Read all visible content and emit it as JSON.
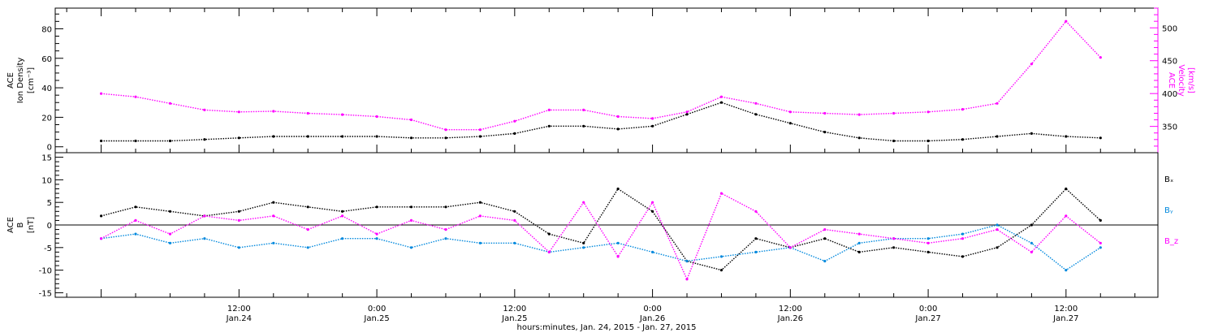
{
  "chart_data": [
    {
      "type": "scatter",
      "panel": "top",
      "ylabel_left": [
        "ACE",
        "Ion Density",
        "[cm⁻³]"
      ],
      "ylabel_right": [
        "ACE",
        "Velocity",
        "[km/s]"
      ],
      "ylim_left": [
        -4,
        94
      ],
      "ylim_right": [
        310,
        530
      ],
      "left_ticks": [
        0,
        20,
        40,
        60,
        80
      ],
      "right_ticks": [
        350,
        400,
        450,
        500
      ],
      "series": [
        {
          "axis": "left",
          "color": "#000000",
          "x": [
            0,
            3,
            6,
            9,
            12,
            15,
            18,
            21,
            24,
            27,
            30,
            33,
            36,
            39,
            42,
            45,
            48,
            51,
            54,
            57,
            60,
            63,
            66,
            69,
            72,
            75,
            78,
            81,
            84,
            87
          ],
          "values": [
            4,
            4,
            4,
            5,
            6,
            7,
            7,
            7,
            7,
            6,
            6,
            7,
            9,
            14,
            14,
            12,
            14,
            22,
            30,
            22,
            16,
            10,
            6,
            4,
            4,
            5,
            7,
            9,
            7,
            6
          ]
        },
        {
          "axis": "right",
          "color": "#ff00ff",
          "x": [
            0,
            3,
            6,
            9,
            12,
            15,
            18,
            21,
            24,
            27,
            30,
            33,
            36,
            39,
            42,
            45,
            48,
            51,
            54,
            57,
            60,
            63,
            66,
            69,
            72,
            75,
            78,
            81,
            84,
            87
          ],
          "values": [
            400,
            395,
            385,
            375,
            372,
            373,
            370,
            368,
            365,
            360,
            345,
            345,
            358,
            375,
            375,
            365,
            362,
            372,
            395,
            385,
            372,
            370,
            368,
            370,
            372,
            376,
            385,
            445,
            510,
            455
          ]
        }
      ]
    },
    {
      "type": "scatter",
      "panel": "bottom",
      "ylabel_left": [
        "ACE",
        "B",
        "[nT]"
      ],
      "ylim": [
        -16,
        16
      ],
      "left_ticks": [
        -15,
        -10,
        -5,
        0,
        5,
        10,
        15
      ],
      "legend": [
        {
          "label": "Bₓ",
          "color": "#000000"
        },
        {
          "label": "Bᵧ",
          "color": "#0088dd"
        },
        {
          "label": "B_z",
          "color": "#ff00ff"
        }
      ],
      "series": [
        {
          "name": "Bₓ",
          "color": "#000000",
          "x": [
            0,
            3,
            6,
            9,
            12,
            15,
            18,
            21,
            24,
            27,
            30,
            33,
            36,
            39,
            42,
            45,
            48,
            51,
            54,
            57,
            60,
            63,
            66,
            69,
            72,
            75,
            78,
            81,
            84,
            87
          ],
          "values": [
            2,
            4,
            3,
            2,
            3,
            5,
            4,
            3,
            4,
            4,
            4,
            5,
            3,
            -2,
            -4,
            8,
            3,
            -8,
            -10,
            -3,
            -5,
            -3,
            -6,
            -5,
            -6,
            -7,
            -5,
            0,
            8,
            1
          ]
        },
        {
          "name": "Bᵧ",
          "color": "#0088dd",
          "x": [
            0,
            3,
            6,
            9,
            12,
            15,
            18,
            21,
            24,
            27,
            30,
            33,
            36,
            39,
            42,
            45,
            48,
            51,
            54,
            57,
            60,
            63,
            66,
            69,
            72,
            75,
            78,
            81,
            84,
            87
          ],
          "values": [
            -3,
            -2,
            -4,
            -3,
            -5,
            -4,
            -5,
            -3,
            -3,
            -5,
            -3,
            -4,
            -4,
            -6,
            -5,
            -4,
            -6,
            -8,
            -7,
            -6,
            -5,
            -8,
            -4,
            -3,
            -3,
            -2,
            0,
            -4,
            -10,
            -5
          ]
        },
        {
          "name": "B_z",
          "color": "#ff00ff",
          "x": [
            0,
            3,
            6,
            9,
            12,
            15,
            18,
            21,
            24,
            27,
            30,
            33,
            36,
            39,
            42,
            45,
            48,
            51,
            54,
            57,
            60,
            63,
            66,
            69,
            72,
            75,
            78,
            81,
            84,
            87
          ],
          "values": [
            -3,
            1,
            -2,
            2,
            1,
            2,
            -1,
            2,
            -2,
            1,
            -1,
            2,
            1,
            -6,
            5,
            -7,
            5,
            -12,
            7,
            3,
            -5,
            -1,
            -2,
            -3,
            -4,
            -3,
            -1,
            -6,
            2,
            -4
          ]
        }
      ]
    }
  ],
  "x_axis": {
    "range_hours": [
      -4,
      92
    ],
    "ticks": [
      {
        "h": 12,
        "time": "12:00",
        "date": "Jan.24"
      },
      {
        "h": 24,
        "time": "0:00",
        "date": "Jan.25"
      },
      {
        "h": 36,
        "time": "12:00",
        "date": "Jan.25"
      },
      {
        "h": 48,
        "time": "0:00",
        "date": "Jan.26"
      },
      {
        "h": 60,
        "time": "12:00",
        "date": "Jan.26"
      },
      {
        "h": 72,
        "time": "0:00",
        "date": "Jan.27"
      },
      {
        "h": 84,
        "time": "12:00",
        "date": "Jan.27"
      }
    ],
    "xlabel": "hours:minutes, Jan. 24, 2015 - Jan. 27, 2015"
  }
}
